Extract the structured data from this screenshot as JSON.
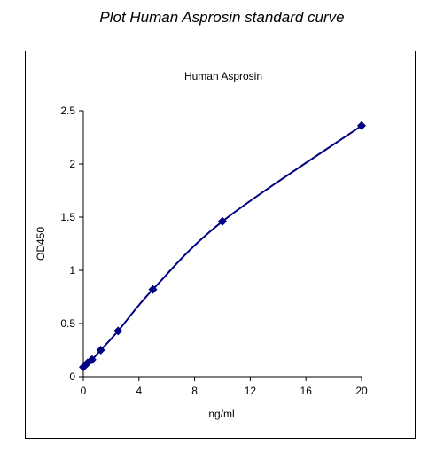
{
  "page_title": "Plot Human Asprosin standard curve",
  "chart_data": {
    "type": "line",
    "title": "Human Asprosin",
    "xlabel": "ng/ml",
    "ylabel": "OD450",
    "xlim": [
      0,
      20
    ],
    "ylim": [
      0,
      2.5
    ],
    "x_ticks": [
      0,
      4,
      8,
      12,
      16,
      20
    ],
    "y_ticks": [
      0,
      0.5,
      1,
      1.5,
      2,
      2.5
    ],
    "grid": false,
    "legend": "none",
    "smoothed": true,
    "marker": "diamond",
    "color": "#000080",
    "series": [
      {
        "x": [
          0,
          0.156,
          0.3125,
          0.625,
          1.25,
          2.5,
          5,
          10,
          20
        ],
        "y": [
          0.09,
          0.11,
          0.13,
          0.16,
          0.25,
          0.43,
          0.82,
          1.46,
          2.36
        ]
      }
    ]
  }
}
